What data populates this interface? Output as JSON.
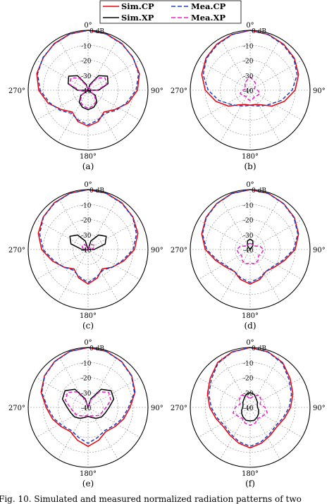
{
  "legend": [
    {
      "label": "Sim.CP",
      "color": "#e8000b",
      "dash": "solid"
    },
    {
      "label": "Mea.CP",
      "color": "#1f3fbf",
      "dash": "dashed"
    },
    {
      "label": "Sim.XP",
      "color": "#000000",
      "dash": "solid"
    },
    {
      "label": "Mea.XP",
      "color": "#e81ec8",
      "dash": "dashed"
    }
  ],
  "caption": "Fig. 10.   Simulated and measured normalized radiation patterns of two",
  "chart_data": [
    {
      "type": "polar",
      "label": "(a)",
      "angle_labels": [
        "0°",
        "90°",
        "180°",
        "270°"
      ],
      "radial_ticks": [
        "0 dB",
        "-10",
        "-20",
        "-30",
        "-40"
      ],
      "rlim": [
        -40,
        0
      ],
      "series": [
        {
          "name": "Sim.CP",
          "r": [
            0,
            -0.5,
            -1.5,
            -3,
            -4,
            -7,
            -12,
            -18,
            -22,
            -18,
            -16,
            -18,
            -22,
            -18,
            -12,
            -7,
            -4,
            -3,
            -1.5,
            -0.5
          ]
        },
        {
          "name": "Mea.CP",
          "r": [
            0,
            -0.6,
            -1.8,
            -2.8,
            -4.5,
            -8,
            -13,
            -17,
            -21,
            -19,
            -17,
            -19,
            -21,
            -17,
            -13,
            -8,
            -4.5,
            -2.8,
            -1.8,
            -0.6
          ]
        },
        {
          "name": "Sim.XP",
          "r": [
            -40,
            -36,
            -28,
            -24,
            -26,
            -33,
            -40,
            -34,
            -30,
            -28,
            -27,
            -28,
            -30,
            -34,
            -40,
            -33,
            -26,
            -24,
            -28,
            -36
          ]
        },
        {
          "name": "Mea.XP",
          "r": [
            -40,
            -37,
            -30,
            -26,
            -27,
            -34,
            -39,
            -35,
            -31,
            -29,
            -28,
            -29,
            -31,
            -35,
            -39,
            -34,
            -27,
            -26,
            -30,
            -37
          ]
        }
      ]
    },
    {
      "type": "polar",
      "label": "(b)",
      "angle_labels": [
        "0°",
        "90°",
        "180°",
        "270°"
      ],
      "radial_ticks": [
        "0 dB",
        "-10",
        "-20",
        "-30",
        "-40"
      ],
      "rlim": [
        -40,
        0
      ],
      "series": [
        {
          "name": "Sim.CP",
          "r": [
            0,
            -0.8,
            -2,
            -3.5,
            -6,
            -10,
            -16,
            -22,
            -28,
            -30,
            -30,
            -30,
            -28,
            -22,
            -16,
            -10,
            -6,
            -3.5,
            -2,
            -0.8
          ]
        },
        {
          "name": "Mea.CP",
          "r": [
            0,
            -1,
            -2.5,
            -4,
            -7,
            -12,
            -18,
            -24,
            -27,
            -29,
            -30,
            -29,
            -27,
            -24,
            -18,
            -12,
            -7,
            -4,
            -2.5,
            -1
          ]
        },
        {
          "name": "Sim.XP",
          "r": [
            -40,
            -40,
            -40,
            -40,
            -40,
            -40,
            -40,
            -40,
            -40,
            -40,
            -40,
            -40,
            -40,
            -40,
            -40,
            -40,
            -40,
            -40,
            -40,
            -40
          ]
        },
        {
          "name": "Mea.XP",
          "r": [
            -31,
            -33,
            -34,
            -36,
            -37,
            -35,
            -33,
            -34,
            -35,
            -34,
            -33,
            -34,
            -35,
            -34,
            -33,
            -35,
            -37,
            -36,
            -34,
            -33
          ]
        }
      ]
    },
    {
      "type": "polar",
      "label": "(c)",
      "angle_labels": [
        "0°",
        "90°",
        "180°",
        "270°"
      ],
      "radial_ticks": [
        "0 dB",
        "-10",
        "-20",
        "-30",
        "-40"
      ],
      "rlim": [
        -40,
        0
      ],
      "series": [
        {
          "name": "Sim.CP",
          "r": [
            0,
            -0.5,
            -1.5,
            -3,
            -5,
            -9,
            -15,
            -20,
            -24,
            -20,
            -17,
            -20,
            -24,
            -20,
            -15,
            -9,
            -5,
            -3,
            -1.5,
            -0.5
          ]
        },
        {
          "name": "Mea.CP",
          "r": [
            0,
            -0.6,
            -1.8,
            -3.2,
            -6,
            -10,
            -16,
            -20,
            -23,
            -21,
            -18,
            -21,
            -23,
            -20,
            -16,
            -10,
            -6,
            -3.2,
            -1.8,
            -0.6
          ]
        },
        {
          "name": "Sim.XP",
          "r": [
            -40,
            -34,
            -28,
            -25,
            -28,
            -36,
            -40,
            -40,
            -40,
            -40,
            -40,
            -40,
            -40,
            -40,
            -40,
            -36,
            -28,
            -25,
            -28,
            -34
          ]
        },
        {
          "name": "Mea.XP",
          "r": [
            -40,
            -38,
            -36,
            -35,
            -36,
            -38,
            -40,
            -40,
            -40,
            -40,
            -40,
            -40,
            -40,
            -40,
            -40,
            -38,
            -36,
            -35,
            -36,
            -38
          ]
        }
      ]
    },
    {
      "type": "polar",
      "label": "(d)",
      "angle_labels": [
        "0°",
        "90°",
        "180°",
        "270°"
      ],
      "radial_ticks": [
        "0 dB",
        "-10",
        "-20",
        "-30",
        "-40"
      ],
      "rlim": [
        -40,
        0
      ],
      "series": [
        {
          "name": "Sim.CP",
          "r": [
            0,
            -0.6,
            -2,
            -3.5,
            -6,
            -10,
            -16,
            -20,
            -22,
            -19,
            -17,
            -19,
            -22,
            -20,
            -16,
            -10,
            -6,
            -3.5,
            -2,
            -0.6
          ]
        },
        {
          "name": "Mea.CP",
          "r": [
            0,
            -0.7,
            -2.2,
            -3.8,
            -6.5,
            -11,
            -17,
            -21,
            -22,
            -20,
            -18,
            -20,
            -22,
            -21,
            -17,
            -11,
            -6.5,
            -3.8,
            -2.2,
            -0.7
          ]
        },
        {
          "name": "Sim.XP",
          "r": [
            -33,
            -34,
            -37,
            -40,
            -40,
            -40,
            -40,
            -40,
            -40,
            -40,
            -40,
            -40,
            -40,
            -40,
            -40,
            -40,
            -40,
            -40,
            -37,
            -34
          ]
        },
        {
          "name": "Mea.XP",
          "r": [
            -36,
            -36,
            -37,
            -36,
            -33,
            -31,
            -32,
            -33,
            -31,
            -30,
            -31,
            -30,
            -31,
            -33,
            -32,
            -31,
            -33,
            -36,
            -37,
            -36
          ]
        }
      ]
    },
    {
      "type": "polar",
      "label": "(e)",
      "angle_labels": [
        "0°",
        "90°",
        "180°",
        "270°"
      ],
      "radial_ticks": [
        "0 dB",
        "-10",
        "-20",
        "-30",
        "-40"
      ],
      "rlim": [
        -40,
        0
      ],
      "series": [
        {
          "name": "Sim.CP",
          "r": [
            0,
            -0.6,
            -2,
            -4,
            -7,
            -12,
            -15,
            -18,
            -20,
            -17,
            -14,
            -17,
            -20,
            -18,
            -15,
            -12,
            -7,
            -4,
            -2,
            -0.6
          ]
        },
        {
          "name": "Mea.CP",
          "r": [
            0,
            -0.7,
            -2.2,
            -4.2,
            -7.5,
            -13,
            -16,
            -19,
            -21,
            -19,
            -16,
            -19,
            -21,
            -19,
            -16,
            -13,
            -7.5,
            -4.2,
            -2.2,
            -0.7
          ]
        },
        {
          "name": "Sim.XP",
          "r": [
            -40,
            -34,
            -25,
            -21,
            -22,
            -26,
            -28,
            -29,
            -31,
            -33,
            -34,
            -33,
            -31,
            -29,
            -28,
            -26,
            -22,
            -21,
            -25,
            -34
          ]
        },
        {
          "name": "Mea.XP",
          "r": [
            -40,
            -35,
            -27,
            -23,
            -24,
            -28,
            -30,
            -31,
            -33,
            -34,
            -35,
            -34,
            -33,
            -31,
            -30,
            -28,
            -24,
            -23,
            -27,
            -35
          ]
        }
      ]
    },
    {
      "type": "polar",
      "label": "(f)",
      "angle_labels": [
        "0°",
        "90°",
        "180°",
        "270°"
      ],
      "radial_ticks": [
        "0 dB",
        "-10",
        "-20",
        "-30",
        "-40"
      ],
      "rlim": [
        -40,
        0
      ],
      "series": [
        {
          "name": "Sim.CP",
          "r": [
            0,
            -1,
            -3,
            -7,
            -10,
            -13,
            -16,
            -18,
            -17,
            -15,
            -13,
            -15,
            -17,
            -18,
            -16,
            -13,
            -10,
            -7,
            -3,
            -1
          ]
        },
        {
          "name": "Mea.CP",
          "r": [
            0,
            -1.2,
            -3.5,
            -8,
            -11,
            -14,
            -17,
            -19,
            -18,
            -16,
            -14,
            -16,
            -18,
            -19,
            -17,
            -14,
            -11,
            -8,
            -3.5,
            -1.2
          ]
        },
        {
          "name": "Sim.XP",
          "r": [
            -30,
            -31,
            -33,
            -34,
            -35,
            -35,
            -34,
            -33,
            -32,
            -31,
            -31,
            -31,
            -32,
            -33,
            -34,
            -35,
            -35,
            -34,
            -33,
            -31
          ]
        },
        {
          "name": "Mea.XP",
          "r": [
            -34,
            -32,
            -30,
            -31,
            -33,
            -30,
            -28,
            -30,
            -31,
            -29,
            -28,
            -29,
            -31,
            -30,
            -28,
            -30,
            -33,
            -31,
            -30,
            -32
          ]
        }
      ]
    }
  ]
}
